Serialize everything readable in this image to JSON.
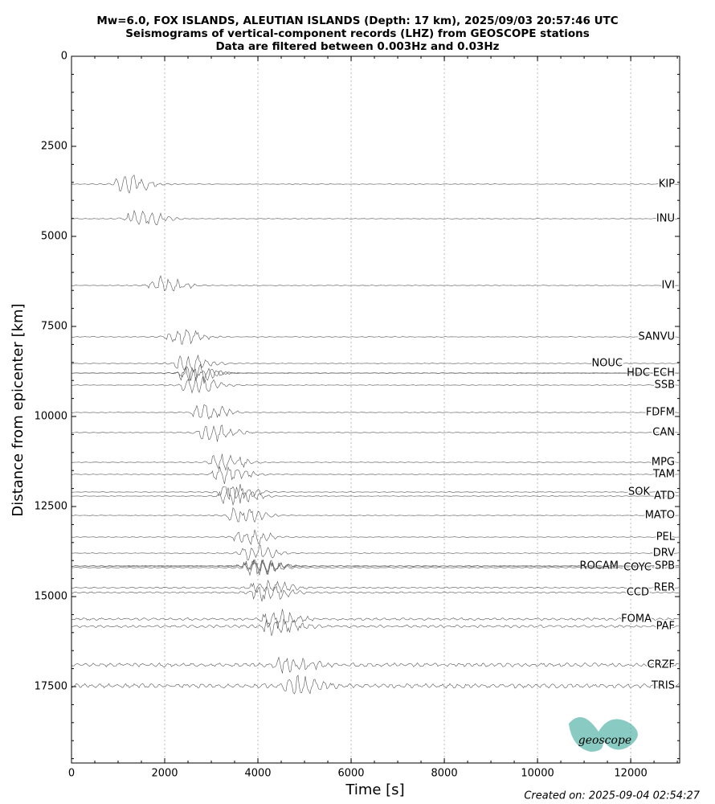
{
  "chart_data": {
    "type": "seismogram",
    "title": "Mw=6.0, FOX ISLANDS, ALEUTIAN ISLANDS (Depth: 17 km), 2025/09/03 20:57:46 UTC",
    "subtitle": "Seismograms of vertical-component records (LHZ) from GEOSCOPE stations",
    "subtitle2": "Data are filtered between 0.003Hz and 0.03Hz",
    "x_label": "Time [s]",
    "y_label": "Distance from epicenter [km]",
    "xlim": [
      0,
      13050
    ],
    "ylim": [
      0,
      19620
    ],
    "xticks": [
      0,
      2000,
      4000,
      6000,
      8000,
      10000,
      12000
    ],
    "yticks": [
      0,
      2500,
      5000,
      7500,
      10000,
      12500,
      15000,
      17500
    ],
    "grid": true,
    "color": "#555555",
    "series": [
      {
        "name": "KIP",
        "distance": 3549
      },
      {
        "name": "INU",
        "distance": 4509
      },
      {
        "name": "IVI",
        "distance": 6362
      },
      {
        "name": "SANVU",
        "distance": 7790
      },
      {
        "name": "NOUC",
        "distance": 8527
      },
      {
        "name": "HDC",
        "distance": 8795
      },
      {
        "name": "ECH",
        "distance": 8795
      },
      {
        "name": "SSB",
        "distance": 9129
      },
      {
        "name": "FDFM",
        "distance": 9888
      },
      {
        "name": "CAN",
        "distance": 10446
      },
      {
        "name": "MPG",
        "distance": 11272
      },
      {
        "name": "TAM",
        "distance": 11607
      },
      {
        "name": "SOK",
        "distance": 12098
      },
      {
        "name": "ATD",
        "distance": 12210
      },
      {
        "name": "MATO",
        "distance": 12746
      },
      {
        "name": "PEL",
        "distance": 13348
      },
      {
        "name": "DRV",
        "distance": 13795
      },
      {
        "name": "ROCAM",
        "distance": 14152
      },
      {
        "name": "COYC",
        "distance": 14196
      },
      {
        "name": "SPB",
        "distance": 14152
      },
      {
        "name": "RER",
        "distance": 14754
      },
      {
        "name": "CCD",
        "distance": 14888
      },
      {
        "name": "FOMA",
        "distance": 15625
      },
      {
        "name": "PAF",
        "distance": 15826
      },
      {
        "name": "CRZF",
        "distance": 16897
      },
      {
        "name": "TRIS",
        "distance": 17478
      }
    ],
    "footer": "Created on: 2025-09-04 02:54:27",
    "logo": "geoscope"
  }
}
